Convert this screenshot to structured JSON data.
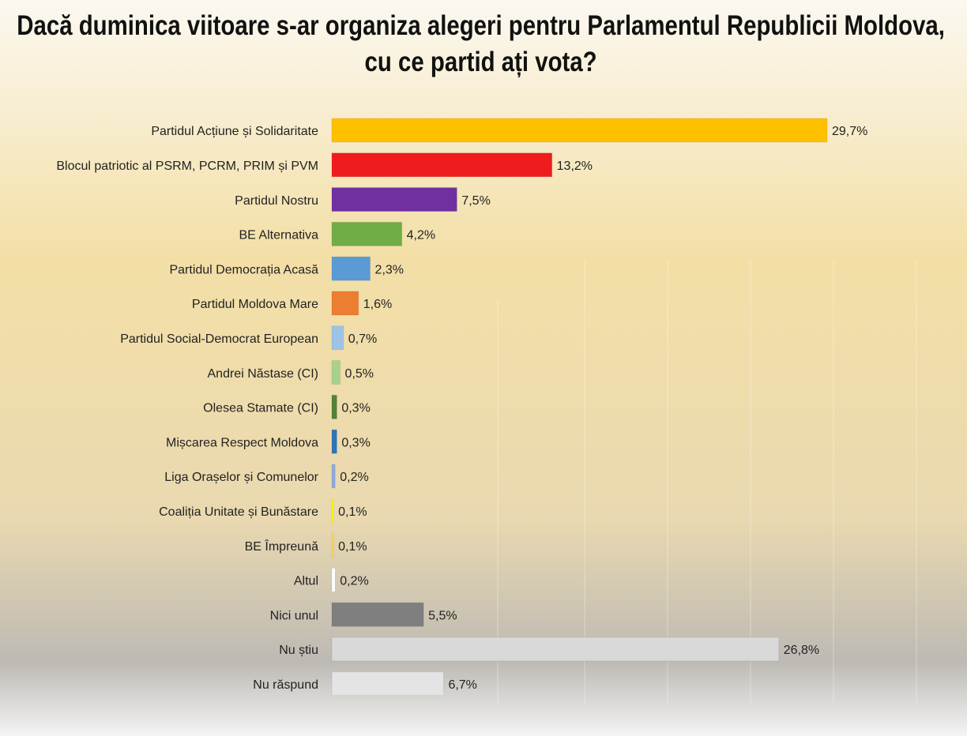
{
  "chart_data": {
    "type": "hbar",
    "title": "Dacă duminica viitoare s-ar organiza alegeri pentru Parlamentul Republicii Moldova, cu ce partid ați vota?",
    "categories": [
      "Partidul Acțiune și Solidaritate",
      "Blocul patriotic al PSRM, PCRM, PRIM și PVM",
      "Partidul Nostru",
      "BE Alternativa",
      "Partidul Democrația Acasă",
      "Partidul Moldova Mare",
      "Partidul Social-Democrat European",
      "Andrei Năstase (CI)",
      "Olesea Stamate (CI)",
      "Mișcarea Respect Moldova",
      "Liga Orașelor și Comunelor",
      "Coaliția Unitate și Bunăstare",
      "BE Împreună",
      "Altul",
      "Nici unul",
      "Nu știu",
      "Nu răspund"
    ],
    "values": [
      29.7,
      13.2,
      7.5,
      4.2,
      2.3,
      1.6,
      0.7,
      0.5,
      0.3,
      0.3,
      0.2,
      0.1,
      0.1,
      0.2,
      5.5,
      26.8,
      6.7
    ],
    "value_labels": [
      "29,7%",
      "13,2%",
      "7,5%",
      "4,2%",
      "2,3%",
      "1,6%",
      "0,7%",
      "0,5%",
      "0,3%",
      "0,3%",
      "0,2%",
      "0,1%",
      "0,1%",
      "0,2%",
      "5,5%",
      "26,8%",
      "6,7%"
    ],
    "colors": [
      "#ffc000",
      "#ee1c1c",
      "#7030a0",
      "#70ad47",
      "#5b9bd5",
      "#ed7d31",
      "#9dc3e6",
      "#a9d18e",
      "#548235",
      "#2e75b6",
      "#8faadc",
      "#ffff00",
      "#ffd966",
      "#ffffff",
      "#7f7f7f",
      "#d9d9d9",
      "#e4e4e4"
    ]
  }
}
